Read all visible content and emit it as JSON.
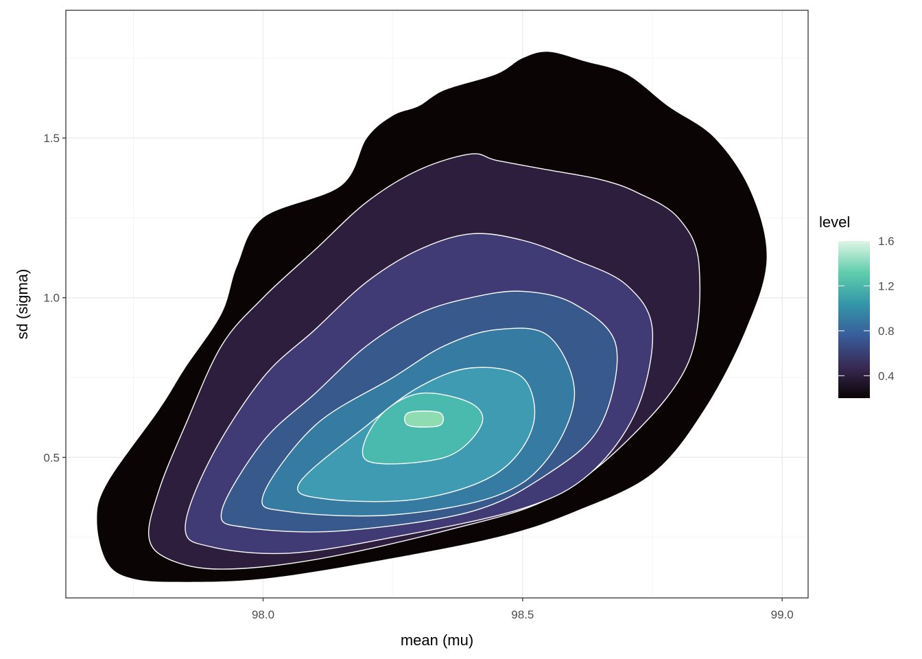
{
  "chart_data": {
    "type": "density_contour",
    "xlabel": "mean (mu)",
    "ylabel": "sd (sigma)",
    "xlim": [
      97.62,
      99.05
    ],
    "ylim": [
      0.06,
      1.9
    ],
    "x_ticks": [
      {
        "value": 98.0,
        "label": "98.0"
      },
      {
        "value": 98.5,
        "label": "98.5"
      },
      {
        "value": 99.0,
        "label": "99.0"
      }
    ],
    "y_ticks": [
      {
        "value": 0.5,
        "label": "0.5"
      },
      {
        "value": 1.0,
        "label": "1.0"
      },
      {
        "value": 1.5,
        "label": "1.5"
      }
    ],
    "grid": true,
    "legend": {
      "title": "level",
      "position": "right",
      "range": [
        0.2,
        1.6
      ],
      "ticks": [
        {
          "value": 0.4,
          "label": "0.4"
        },
        {
          "value": 0.8,
          "label": "0.8"
        },
        {
          "value": 1.2,
          "label": "1.2"
        },
        {
          "value": 1.6,
          "label": "1.6"
        }
      ],
      "gradient_colors": [
        "#0b0405",
        "#382a54",
        "#395d9c",
        "#3497a9",
        "#60ceac",
        "#def5e5"
      ]
    },
    "contours": [
      {
        "level": 0.2,
        "color": "#0b0405",
        "points": [
          [
            97.7,
            0.17
          ],
          [
            97.75,
            0.12
          ],
          [
            97.85,
            0.11
          ],
          [
            98.0,
            0.12
          ],
          [
            98.2,
            0.17
          ],
          [
            98.45,
            0.25
          ],
          [
            98.6,
            0.33
          ],
          [
            98.75,
            0.45
          ],
          [
            98.85,
            0.65
          ],
          [
            98.93,
            0.9
          ],
          [
            98.97,
            1.12
          ],
          [
            98.94,
            1.33
          ],
          [
            98.87,
            1.5
          ],
          [
            98.78,
            1.6
          ],
          [
            98.7,
            1.7
          ],
          [
            98.62,
            1.74
          ],
          [
            98.55,
            1.77
          ],
          [
            98.5,
            1.75
          ],
          [
            98.45,
            1.7
          ],
          [
            98.35,
            1.65
          ],
          [
            98.3,
            1.6
          ],
          [
            98.25,
            1.57
          ],
          [
            98.2,
            1.5
          ],
          [
            98.15,
            1.35
          ],
          [
            98.0,
            1.25
          ],
          [
            97.95,
            1.1
          ],
          [
            97.92,
            0.95
          ],
          [
            97.85,
            0.78
          ],
          [
            97.8,
            0.65
          ],
          [
            97.7,
            0.42
          ],
          [
            97.68,
            0.3
          ]
        ]
      },
      {
        "level": 0.4,
        "color": "#2d1e3e",
        "points": [
          [
            97.78,
            0.25
          ],
          [
            97.82,
            0.18
          ],
          [
            97.92,
            0.15
          ],
          [
            98.1,
            0.18
          ],
          [
            98.35,
            0.27
          ],
          [
            98.55,
            0.37
          ],
          [
            98.7,
            0.55
          ],
          [
            98.82,
            0.8
          ],
          [
            98.84,
            1.1
          ],
          [
            98.8,
            1.25
          ],
          [
            98.72,
            1.33
          ],
          [
            98.65,
            1.37
          ],
          [
            98.55,
            1.4
          ],
          [
            98.45,
            1.43
          ],
          [
            98.4,
            1.45
          ],
          [
            98.3,
            1.4
          ],
          [
            98.2,
            1.3
          ],
          [
            98.1,
            1.15
          ],
          [
            98.0,
            1.0
          ],
          [
            97.92,
            0.85
          ],
          [
            97.85,
            0.6
          ],
          [
            97.8,
            0.4
          ]
        ]
      },
      {
        "level": 0.6,
        "color": "#403a75",
        "points": [
          [
            97.85,
            0.28
          ],
          [
            97.9,
            0.22
          ],
          [
            98.05,
            0.2
          ],
          [
            98.25,
            0.25
          ],
          [
            98.5,
            0.34
          ],
          [
            98.63,
            0.45
          ],
          [
            98.72,
            0.65
          ],
          [
            98.75,
            0.9
          ],
          [
            98.7,
            1.04
          ],
          [
            98.6,
            1.12
          ],
          [
            98.5,
            1.18
          ],
          [
            98.4,
            1.2
          ],
          [
            98.3,
            1.15
          ],
          [
            98.2,
            1.05
          ],
          [
            98.1,
            0.9
          ],
          [
            98.0,
            0.75
          ],
          [
            97.9,
            0.5
          ]
        ]
      },
      {
        "level": 0.8,
        "color": "#38598c",
        "points": [
          [
            97.92,
            0.33
          ],
          [
            97.97,
            0.28
          ],
          [
            98.15,
            0.27
          ],
          [
            98.4,
            0.33
          ],
          [
            98.55,
            0.45
          ],
          [
            98.65,
            0.6
          ],
          [
            98.68,
            0.85
          ],
          [
            98.6,
            0.98
          ],
          [
            98.5,
            1.02
          ],
          [
            98.4,
            1.0
          ],
          [
            98.3,
            0.95
          ],
          [
            98.2,
            0.85
          ],
          [
            98.1,
            0.7
          ],
          [
            98.0,
            0.55
          ]
        ]
      },
      {
        "level": 1.0,
        "color": "#357ba2",
        "points": [
          [
            98.0,
            0.38
          ],
          [
            98.05,
            0.33
          ],
          [
            98.25,
            0.32
          ],
          [
            98.45,
            0.38
          ],
          [
            98.55,
            0.5
          ],
          [
            98.6,
            0.7
          ],
          [
            98.55,
            0.88
          ],
          [
            98.45,
            0.9
          ],
          [
            98.35,
            0.85
          ],
          [
            98.25,
            0.75
          ],
          [
            98.1,
            0.6
          ]
        ]
      },
      {
        "level": 1.2,
        "color": "#3e9bb2",
        "points": [
          [
            98.07,
            0.42
          ],
          [
            98.12,
            0.37
          ],
          [
            98.3,
            0.37
          ],
          [
            98.45,
            0.45
          ],
          [
            98.52,
            0.6
          ],
          [
            98.5,
            0.75
          ],
          [
            98.4,
            0.78
          ],
          [
            98.3,
            0.72
          ],
          [
            98.2,
            0.6
          ]
        ]
      },
      {
        "level": 1.4,
        "color": "#4bbaae",
        "points": [
          [
            98.2,
            0.49
          ],
          [
            98.35,
            0.5
          ],
          [
            98.42,
            0.6
          ],
          [
            98.4,
            0.67
          ],
          [
            98.3,
            0.7
          ],
          [
            98.22,
            0.62
          ]
        ]
      },
      {
        "level": 1.6,
        "color": "#8fdbb2",
        "points": [
          [
            98.28,
            0.6
          ],
          [
            98.34,
            0.6
          ],
          [
            98.34,
            0.64
          ],
          [
            98.28,
            0.64
          ]
        ]
      }
    ]
  }
}
